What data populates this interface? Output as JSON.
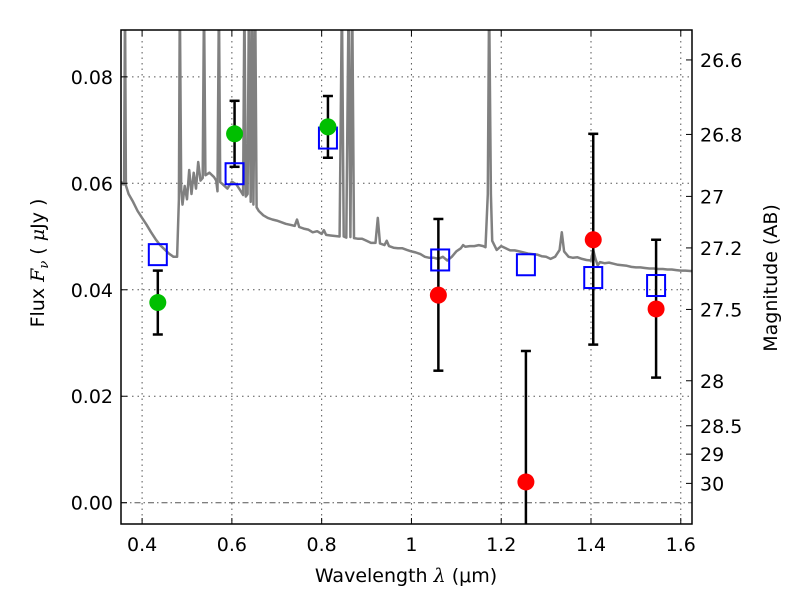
{
  "chart_data": {
    "type": "scatter",
    "title": "",
    "xlabel": "Wavelength  λ (μm)",
    "xlabel_parts": {
      "text": "Wavelength  ",
      "symbol": "λ",
      "unit": " (μm)"
    },
    "ylabel": "Flux  F_ν  ( μJy )",
    "ylabel_parts": {
      "text": "Flux  ",
      "symbol": "F",
      "subscript": "ν",
      "unit_open": "  ( ",
      "unit_mu": "μ",
      "unit_rest": "Jy )"
    },
    "y2label": "Magnitude (AB)",
    "xlim": [
      0.353,
      1.625
    ],
    "ylim": [
      -0.004,
      0.0888
    ],
    "grid": true,
    "xticks": [
      0.4,
      0.6,
      0.8,
      1.0,
      1.2,
      1.4,
      1.6
    ],
    "xtick_labels": [
      "0.4",
      "0.6",
      "0.8",
      "1",
      "1.2",
      "1.4",
      "1.6"
    ],
    "yticks": [
      0.0,
      0.02,
      0.04,
      0.06,
      0.08
    ],
    "ytick_labels": [
      "0.00",
      "0.02",
      "0.04",
      "0.06",
      "0.08"
    ],
    "y2ticks_mag": [
      26.6,
      26.8,
      27,
      27.2,
      27.5,
      28,
      28.5,
      29,
      30
    ],
    "y2tick_labels": [
      "26.6",
      "26.8",
      "27",
      "27.2",
      "27.5",
      "28",
      "28.5",
      "29",
      "30"
    ],
    "zero_line": 0.0,
    "colors": {
      "spectrum": "#808080",
      "detections": "#00bf00",
      "nondetections": "#ff0000",
      "model_photometry": "#0000ff",
      "errorbar": "#000000"
    },
    "series": [
      {
        "name": "model-spectrum",
        "kind": "line",
        "points": [
          [
            0.353,
            0.0603
          ],
          [
            0.358,
            0.0598
          ],
          [
            0.36,
            0.0598
          ],
          [
            0.362,
            0.095
          ],
          [
            0.364,
            0.0596
          ],
          [
            0.37,
            0.058
          ],
          [
            0.38,
            0.0565
          ],
          [
            0.39,
            0.0548
          ],
          [
            0.4,
            0.0535
          ],
          [
            0.41,
            0.0522
          ],
          [
            0.42,
            0.0508
          ],
          [
            0.43,
            0.0495
          ],
          [
            0.44,
            0.0484
          ],
          [
            0.45,
            0.0476
          ],
          [
            0.46,
            0.0468
          ],
          [
            0.47,
            0.0462
          ],
          [
            0.478,
            0.0462
          ],
          [
            0.482,
            0.057
          ],
          [
            0.484,
            0.095
          ],
          [
            0.487,
            0.059
          ],
          [
            0.49,
            0.056
          ],
          [
            0.495,
            0.0595
          ],
          [
            0.5,
            0.057
          ],
          [
            0.505,
            0.0625
          ],
          [
            0.51,
            0.058
          ],
          [
            0.515,
            0.062
          ],
          [
            0.52,
            0.059
          ],
          [
            0.525,
            0.064
          ],
          [
            0.53,
            0.0605
          ],
          [
            0.535,
            0.061
          ],
          [
            0.538,
            0.095
          ],
          [
            0.541,
            0.0615
          ],
          [
            0.55,
            0.062
          ],
          [
            0.56,
            0.0612
          ],
          [
            0.565,
            0.0605
          ],
          [
            0.568,
            0.0585
          ],
          [
            0.571,
            0.095
          ],
          [
            0.574,
            0.0602
          ],
          [
            0.58,
            0.0598
          ],
          [
            0.59,
            0.059
          ],
          [
            0.6,
            0.0603
          ],
          [
            0.61,
            0.0598
          ],
          [
            0.62,
            0.0585
          ],
          [
            0.625,
            0.0578
          ],
          [
            0.628,
            0.095
          ],
          [
            0.631,
            0.0575
          ],
          [
            0.635,
            0.058
          ],
          [
            0.638,
            0.095
          ],
          [
            0.642,
            0.0565
          ],
          [
            0.645,
            0.095
          ],
          [
            0.648,
            0.056
          ],
          [
            0.652,
            0.095
          ],
          [
            0.655,
            0.0555
          ],
          [
            0.66,
            0.0548
          ],
          [
            0.67,
            0.054
          ],
          [
            0.68,
            0.0535
          ],
          [
            0.69,
            0.0532
          ],
          [
            0.7,
            0.053
          ],
          [
            0.71,
            0.0527
          ],
          [
            0.72,
            0.0524
          ],
          [
            0.73,
            0.0522
          ],
          [
            0.74,
            0.052
          ],
          [
            0.745,
            0.0532
          ],
          [
            0.75,
            0.0518
          ],
          [
            0.76,
            0.0515
          ],
          [
            0.77,
            0.0513
          ],
          [
            0.78,
            0.0508
          ],
          [
            0.79,
            0.051
          ],
          [
            0.8,
            0.0505
          ],
          [
            0.805,
            0.0512
          ],
          [
            0.81,
            0.0503
          ],
          [
            0.82,
            0.0502
          ],
          [
            0.83,
            0.0501
          ],
          [
            0.84,
            0.05
          ],
          [
            0.845,
            0.095
          ],
          [
            0.849,
            0.05
          ],
          [
            0.855,
            0.0498
          ],
          [
            0.86,
            0.095
          ],
          [
            0.864,
            0.0499
          ],
          [
            0.868,
            0.095
          ],
          [
            0.872,
            0.0497
          ],
          [
            0.88,
            0.0496
          ],
          [
            0.89,
            0.0496
          ],
          [
            0.9,
            0.0492
          ],
          [
            0.91,
            0.0488
          ],
          [
            0.92,
            0.0488
          ],
          [
            0.925,
            0.0535
          ],
          [
            0.93,
            0.0487
          ],
          [
            0.94,
            0.0484
          ],
          [
            0.945,
            0.0492
          ],
          [
            0.95,
            0.0482
          ],
          [
            0.96,
            0.0479
          ],
          [
            0.97,
            0.0478
          ],
          [
            0.98,
            0.0478
          ],
          [
            0.99,
            0.0475
          ],
          [
            1.0,
            0.0472
          ],
          [
            1.01,
            0.047
          ],
          [
            1.02,
            0.0467
          ],
          [
            1.03,
            0.0462
          ],
          [
            1.04,
            0.046
          ],
          [
            1.05,
            0.046
          ],
          [
            1.06,
            0.0458
          ],
          [
            1.07,
            0.0462
          ],
          [
            1.08,
            0.0455
          ],
          [
            1.09,
            0.0462
          ],
          [
            1.1,
            0.0472
          ],
          [
            1.11,
            0.0478
          ],
          [
            1.115,
            0.0484
          ],
          [
            1.12,
            0.0481
          ],
          [
            1.13,
            0.0482
          ],
          [
            1.14,
            0.0482
          ],
          [
            1.15,
            0.0484
          ],
          [
            1.16,
            0.0482
          ],
          [
            1.165,
            0.048
          ],
          [
            1.17,
            0.058
          ],
          [
            1.173,
            0.095
          ],
          [
            1.177,
            0.058
          ],
          [
            1.18,
            0.0492
          ],
          [
            1.19,
            0.0475
          ],
          [
            1.2,
            0.0482
          ],
          [
            1.21,
            0.0478
          ],
          [
            1.22,
            0.0474
          ],
          [
            1.23,
            0.0474
          ],
          [
            1.24,
            0.0472
          ],
          [
            1.25,
            0.047
          ],
          [
            1.26,
            0.0468
          ],
          [
            1.27,
            0.0467
          ],
          [
            1.28,
            0.0466
          ],
          [
            1.29,
            0.0463
          ],
          [
            1.3,
            0.0462
          ],
          [
            1.31,
            0.0458
          ],
          [
            1.32,
            0.0462
          ],
          [
            1.33,
            0.0475
          ],
          [
            1.335,
            0.0508
          ],
          [
            1.34,
            0.0472
          ],
          [
            1.35,
            0.0462
          ],
          [
            1.36,
            0.046
          ],
          [
            1.37,
            0.0461
          ],
          [
            1.38,
            0.0458
          ],
          [
            1.39,
            0.0456
          ],
          [
            1.4,
            0.0455
          ],
          [
            1.405,
            0.0475
          ],
          [
            1.41,
            0.0458
          ],
          [
            1.415,
            0.0446
          ],
          [
            1.42,
            0.0452
          ],
          [
            1.43,
            0.045
          ],
          [
            1.44,
            0.0451
          ],
          [
            1.45,
            0.0449
          ],
          [
            1.46,
            0.0447
          ],
          [
            1.47,
            0.0446
          ],
          [
            1.48,
            0.0445
          ],
          [
            1.49,
            0.0443
          ],
          [
            1.5,
            0.0442
          ],
          [
            1.51,
            0.0442
          ],
          [
            1.52,
            0.0441
          ],
          [
            1.53,
            0.044
          ],
          [
            1.54,
            0.044
          ],
          [
            1.55,
            0.0439
          ],
          [
            1.56,
            0.0439
          ],
          [
            1.57,
            0.0438
          ],
          [
            1.58,
            0.0438
          ],
          [
            1.59,
            0.0437
          ],
          [
            1.6,
            0.0436
          ],
          [
            1.61,
            0.0436
          ],
          [
            1.625,
            0.0435
          ]
        ]
      },
      {
        "name": "observed-detections",
        "kind": "errorbar-circle",
        "points": [
          {
            "x": 0.435,
            "y": 0.0376,
            "err_low": 0.0316,
            "err_high": 0.0436
          },
          {
            "x": 0.606,
            "y": 0.0693,
            "err_low": 0.0631,
            "err_high": 0.0755
          },
          {
            "x": 0.814,
            "y": 0.0706,
            "err_low": 0.0648,
            "err_high": 0.0764
          }
        ]
      },
      {
        "name": "observed-nondetections",
        "kind": "errorbar-circle",
        "points": [
          {
            "x": 1.06,
            "y": 0.039,
            "err_low": 0.0248,
            "err_high": 0.0533
          },
          {
            "x": 1.255,
            "y": 0.0039,
            "err_low": -0.021,
            "err_high": 0.0285
          },
          {
            "x": 1.405,
            "y": 0.0494,
            "err_low": 0.0297,
            "err_high": 0.0693
          },
          {
            "x": 1.545,
            "y": 0.0364,
            "err_low": 0.0235,
            "err_high": 0.0494
          }
        ]
      },
      {
        "name": "model-photometry",
        "kind": "open-square",
        "points": [
          {
            "x": 0.435,
            "y": 0.0466
          },
          {
            "x": 0.606,
            "y": 0.0618
          },
          {
            "x": 0.814,
            "y": 0.0685
          },
          {
            "x": 1.064,
            "y": 0.0456
          },
          {
            "x": 1.255,
            "y": 0.0447
          },
          {
            "x": 1.405,
            "y": 0.0423
          },
          {
            "x": 1.545,
            "y": 0.0408
          }
        ]
      }
    ]
  }
}
